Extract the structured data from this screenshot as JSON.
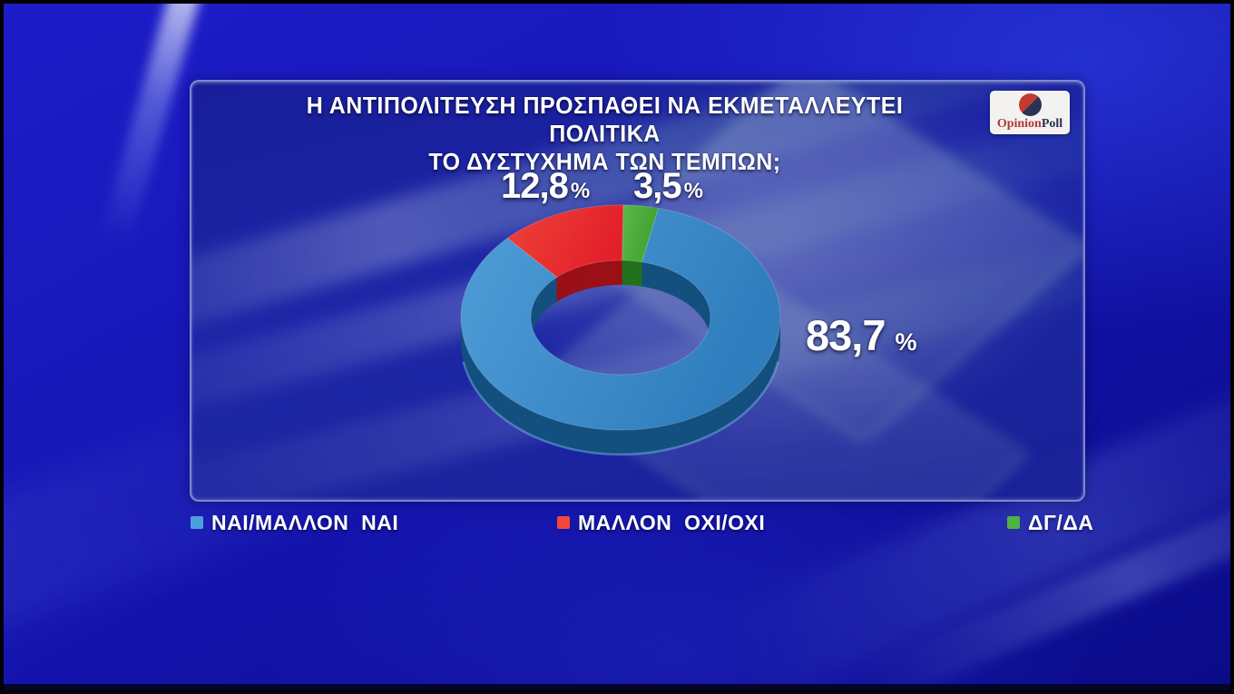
{
  "header": {
    "title_line1": "Η ΑΝΤΙΠΟΛΙΤΕΥΣΗ ΠΡΟΣΠΑΘΕΙ ΝΑ ΕΚΜΕΤΑΛΛΕΥΤΕΙ ΠΟΛΙΤΙΚΑ",
    "title_line2": "ΤΟ ΔΥΣΤΥΧΗΜΑ ΤΩΝ ΤΕΜΠΩΝ;"
  },
  "logo": {
    "part1": "Opinion",
    "part2": "Poll",
    "part1_color": "#b23a30",
    "part2_color": "#252e50",
    "circle_colors": [
      "#c23b32",
      "#2a3353"
    ]
  },
  "chart_data": {
    "type": "pie",
    "style": "3d-donut",
    "title": "Η ΑΝΤΙΠΟΛΙΤΕΥΣΗ ΠΡΟΣΠΑΘΕΙ ΝΑ ΕΚΜΕΤΑΛΛΕΥΤΕΙ ΠΟΛΙΤΙΚΑ ΤΟ ΔΥΣΤΥΧΗΜΑ ΤΩΝ ΤΕΜΠΩΝ;",
    "unit": "%",
    "legend_position": "bottom",
    "start_angle_deg": 13.6,
    "slices": [
      {
        "name": "ΝΑΙ/ΜΑΛΛΟΝ  ΝΑΙ",
        "value": 83.7,
        "label": "83,7",
        "color": "#2f7dbd",
        "color_light": "#4f9ed8",
        "side_color": "#14507f",
        "legend_color": "#4d9fe0"
      },
      {
        "name": "ΜΑΛΛΟΝ  ΟΧΙ/ΟΧΙ",
        "value": 12.8,
        "label": "12,8",
        "color": "#e2202a",
        "color_light": "#ef4238",
        "side_color": "#9a1016",
        "legend_color": "#f2483a"
      },
      {
        "name": "ΔΓ/ΔΑ",
        "value": 3.5,
        "label": "3,5",
        "color": "#3fa031",
        "color_light": "#5cb849",
        "side_color": "#23701a",
        "legend_color": "#4db344"
      }
    ]
  }
}
